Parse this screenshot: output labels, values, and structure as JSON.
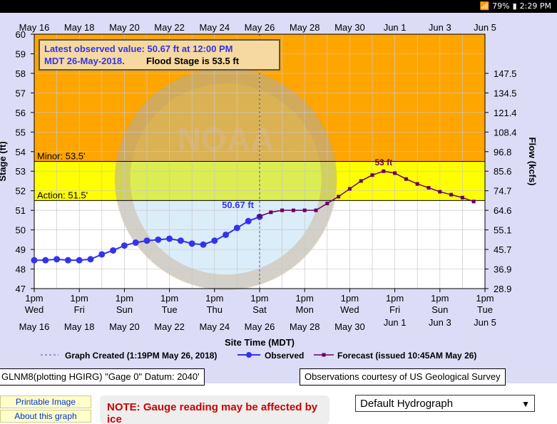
{
  "status_bar": {
    "battery": "79%",
    "time": "2:29 PM"
  },
  "chart_data": {
    "type": "line",
    "title": "",
    "xlabel": "Site Time (MDT)",
    "ylabel": "Stage (ft)",
    "y2label": "Flow (kcfs)",
    "ylim": [
      47,
      60
    ],
    "yticks": [
      47,
      48,
      49,
      50,
      51,
      52,
      53,
      54,
      55,
      56,
      57,
      58,
      59,
      60
    ],
    "y2ticks": [
      {
        "stage": 47.0,
        "label": "28.9"
      },
      {
        "stage": 48.0,
        "label": "36.9"
      },
      {
        "stage": 49.0,
        "label": "45.7"
      },
      {
        "stage": 50.0,
        "label": "55.1"
      },
      {
        "stage": 51.0,
        "label": "64.6"
      },
      {
        "stage": 52.0,
        "label": "74.7"
      },
      {
        "stage": 53.0,
        "label": "85.6"
      },
      {
        "stage": 54.0,
        "label": "96.8"
      },
      {
        "stage": 55.0,
        "label": "108.4"
      },
      {
        "stage": 56.0,
        "label": "121.4"
      },
      {
        "stage": 57.0,
        "label": "134.5"
      },
      {
        "stage": 58.0,
        "label": "147.5"
      }
    ],
    "xlim_days": [
      0,
      20
    ],
    "top_date_labels": [
      "May 16",
      "May 18",
      "May 20",
      "May 22",
      "May 24",
      "May 26",
      "May 28",
      "May 30",
      "Jun 1",
      "Jun 3",
      "Jun 5"
    ],
    "bottom_ticks": [
      {
        "time": "1pm",
        "day": "Wed",
        "date": "May 16"
      },
      {
        "time": "1pm",
        "day": "Fri",
        "date": "May 18"
      },
      {
        "time": "1pm",
        "day": "Sun",
        "date": "May 20"
      },
      {
        "time": "1pm",
        "day": "Tue",
        "date": "May 22"
      },
      {
        "time": "1pm",
        "day": "Thu",
        "date": "May 24"
      },
      {
        "time": "1pm",
        "day": "Sat",
        "date": "May 26"
      },
      {
        "time": "1pm",
        "day": "Mon",
        "date": "May 28"
      },
      {
        "time": "1pm",
        "day": "Wed",
        "date": "May 30"
      },
      {
        "time": "1pm",
        "day": "Fri",
        "date": "Jun 1"
      },
      {
        "time": "1pm",
        "day": "Sun",
        "date": "Jun 3"
      },
      {
        "time": "1pm",
        "day": "Tue",
        "date": "Jun 5"
      }
    ],
    "grid": true,
    "flood_categories": [
      {
        "name": "Minor",
        "label": "Minor: 53.5'",
        "stage": 53.5,
        "color": "#ffa500"
      },
      {
        "name": "Action",
        "label": "Action: 51.5'",
        "stage": 51.5,
        "color": "#ffff00"
      }
    ],
    "info_box": {
      "line1": "Latest observed value: 50.67 ft at 12:00 PM",
      "line2a": "MDT 26-May-2018.",
      "line2b": "Flood Stage is 53.5 ft"
    },
    "watermark": "NOAA",
    "series": [
      {
        "name": "Observed",
        "color": "#3333ee",
        "x_days": [
          0,
          0.5,
          1,
          1.5,
          2,
          2.5,
          3,
          3.5,
          4,
          4.5,
          5,
          5.5,
          6,
          6.5,
          7,
          7.5,
          8,
          8.5,
          9,
          9.5,
          10
        ],
        "y": [
          48.45,
          48.45,
          48.5,
          48.45,
          48.45,
          48.5,
          48.75,
          48.95,
          49.2,
          49.35,
          49.45,
          49.5,
          49.55,
          49.45,
          49.3,
          49.25,
          49.45,
          49.75,
          50.1,
          50.45,
          50.67
        ],
        "end_label": "50.67 ft"
      },
      {
        "name": "Forecast (issued 10:45AM May 26)",
        "color": "#660066",
        "x_days": [
          10,
          10.5,
          11,
          11.5,
          12,
          12.5,
          13,
          13.5,
          14,
          14.5,
          15,
          15.5,
          16,
          16.5,
          17,
          17.5,
          18,
          18.5,
          19,
          19.5
        ],
        "y": [
          50.7,
          50.9,
          51.0,
          51.0,
          51.0,
          51.0,
          51.35,
          51.7,
          52.1,
          52.5,
          52.8,
          53.0,
          52.9,
          52.6,
          52.35,
          52.15,
          51.95,
          51.8,
          51.65,
          51.45
        ],
        "peak_label": "53 ft"
      }
    ],
    "legend": {
      "position": "bottom",
      "created": "Graph Created (1:19PM May 26, 2018)",
      "observed": "Observed",
      "forecast": "Forecast (issued 10:45AM May 26)"
    }
  },
  "footer": {
    "datum": "GLNM8(plotting HGIRG) \"Gage 0\" Datum: 2040'",
    "courtesy": "Observations courtesy of US Geological Survey"
  },
  "links": {
    "printable": "Printable Image",
    "about": "About this graph"
  },
  "note": "NOTE: Gauge reading may be affected by ice",
  "select": {
    "value": "Default Hydrograph"
  }
}
